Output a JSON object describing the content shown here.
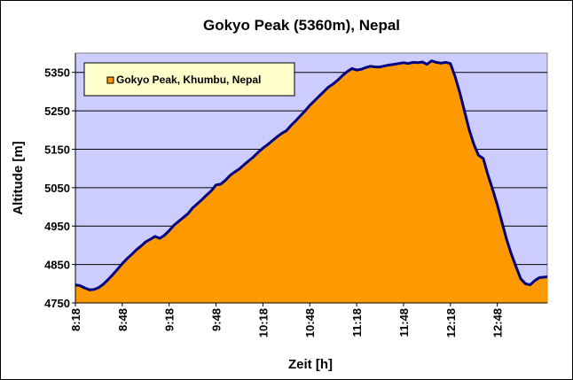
{
  "chart_data": {
    "type": "area",
    "title": "Gokyo Peak (5360m), Nepal",
    "xlabel": "Zeit [h]",
    "ylabel": "Altitude [m]",
    "ylim": [
      4750,
      5400
    ],
    "yticks": [
      4750,
      4850,
      4950,
      5050,
      5150,
      5250,
      5350
    ],
    "xlim_minutes": [
      498,
      800
    ],
    "xticks": [
      {
        "label": "8:18",
        "minutes": 498
      },
      {
        "label": "8:48",
        "minutes": 528
      },
      {
        "label": "9:18",
        "minutes": 558
      },
      {
        "label": "9:48",
        "minutes": 588
      },
      {
        "label": "10:18",
        "minutes": 618
      },
      {
        "label": "10:48",
        "minutes": 648
      },
      {
        "label": "11:18",
        "minutes": 678
      },
      {
        "label": "11:48",
        "minutes": 708
      },
      {
        "label": "12:18",
        "minutes": 738
      },
      {
        "label": "12:48",
        "minutes": 768
      }
    ],
    "grid": "horizontal",
    "legend_position": "top-left",
    "colors": {
      "plot_bg": "#ccccff",
      "fill": "#ff9900",
      "line": "#000080",
      "legend_bg": "#ffffcc"
    },
    "series": [
      {
        "name": "Gokyo Peak, Khumbu, Nepal",
        "x_minutes": [
          498,
          501,
          504,
          507,
          510,
          513,
          516,
          519,
          522,
          525,
          528,
          531,
          534,
          537,
          540,
          543,
          546,
          549,
          552,
          555,
          558,
          561,
          564,
          567,
          570,
          573,
          576,
          579,
          582,
          585,
          588,
          591,
          594,
          597,
          600,
          603,
          606,
          609,
          612,
          615,
          618,
          621,
          624,
          627,
          630,
          633,
          636,
          639,
          642,
          645,
          648,
          651,
          654,
          657,
          660,
          663,
          666,
          669,
          672,
          675,
          678,
          681,
          684,
          687,
          690,
          693,
          696,
          699,
          702,
          705,
          708,
          711,
          714,
          717,
          720,
          723,
          726,
          729,
          732,
          735,
          738,
          741,
          744,
          747,
          750,
          753,
          756,
          759,
          762,
          765,
          768,
          771,
          774,
          777,
          780,
          783,
          786,
          789,
          792,
          795,
          798,
          800
        ],
        "y": [
          4797,
          4795,
          4789,
          4784,
          4785,
          4790,
          4799,
          4811,
          4824,
          4838,
          4852,
          4865,
          4876,
          4888,
          4898,
          4909,
          4916,
          4923,
          4918,
          4926,
          4938,
          4952,
          4962,
          4972,
          4982,
          4997,
          5008,
          5019,
          5031,
          5042,
          5057,
          5059,
          5069,
          5082,
          5091,
          5099,
          5110,
          5120,
          5130,
          5142,
          5153,
          5162,
          5172,
          5182,
          5191,
          5198,
          5212,
          5224,
          5237,
          5250,
          5264,
          5276,
          5288,
          5300,
          5312,
          5320,
          5330,
          5342,
          5352,
          5360,
          5356,
          5358,
          5363,
          5366,
          5364,
          5364,
          5367,
          5369,
          5371,
          5373,
          5375,
          5373,
          5376,
          5375,
          5377,
          5371,
          5380,
          5376,
          5374,
          5376,
          5373,
          5339,
          5297,
          5250,
          5201,
          5163,
          5134,
          5126,
          5083,
          5046,
          5006,
          4960,
          4915,
          4877,
          4844,
          4813,
          4800,
          4797,
          4808,
          4816,
          4817,
          4818
        ]
      }
    ]
  }
}
